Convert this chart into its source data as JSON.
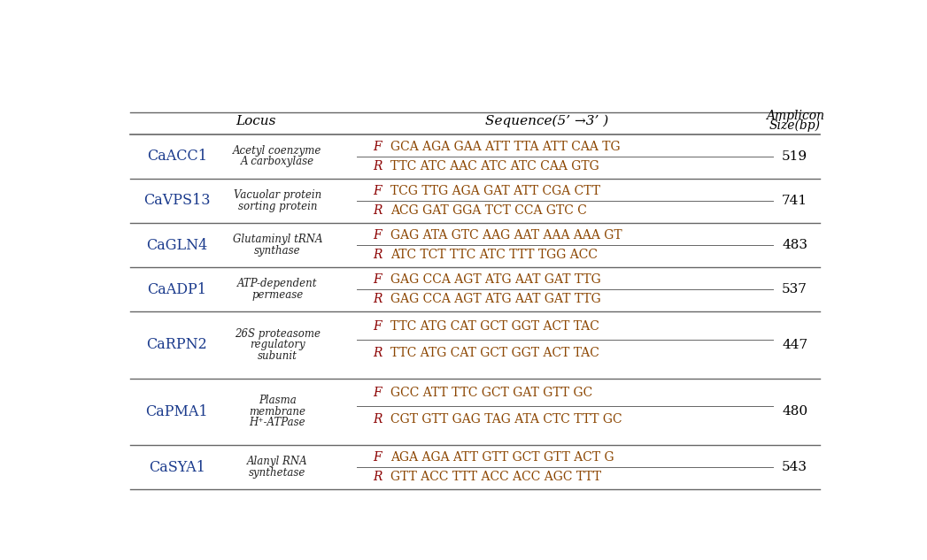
{
  "headers": {
    "locus": "Locus",
    "sequence": "Sequence(5’ →3’ )",
    "amplicon_line1": "Amplicon",
    "amplicon_line2": "Size(bp)"
  },
  "rows": [
    {
      "gene": "CaACC1",
      "description": [
        "Acetyl coenzyme",
        "A carboxylase"
      ],
      "primers": [
        [
          "F",
          "GCA AGA GAA ATT TTA ATT CAA TG"
        ],
        [
          "R",
          "TTC ATC AAC ATC ATC CAA GTG"
        ]
      ],
      "size": "519"
    },
    {
      "gene": "CaVPS13",
      "description": [
        "Vacuolar protein",
        "sorting protein"
      ],
      "primers": [
        [
          "F",
          "TCG TTG AGA GAT ATT CGA CTT"
        ],
        [
          "R",
          "ACG GAT GGA TCT CCA GTC C"
        ]
      ],
      "size": "741"
    },
    {
      "gene": "CaGLN4",
      "description": [
        "Glutaminyl tRNA",
        "synthase"
      ],
      "primers": [
        [
          "F",
          "GAG ATA GTC AAG AAT AAA AAA GT"
        ],
        [
          "R",
          "ATC TCT TTC ATC TTT TGG ACC"
        ]
      ],
      "size": "483"
    },
    {
      "gene": "CaADP1",
      "description": [
        "ATP-dependent",
        "permease"
      ],
      "primers": [
        [
          "F",
          "GAG CCA AGT ATG AAT GAT TTG"
        ],
        [
          "R",
          "GAG CCA AGT ATG AAT GAT TTG"
        ]
      ],
      "size": "537"
    },
    {
      "gene": "CaRPN2",
      "description": [
        "26S proteasome",
        "regulatory",
        "subunit"
      ],
      "primers": [
        [
          "F",
          "TTC ATG CAT GCT GGT ACT TAC"
        ],
        [
          "R",
          "TTC ATG CAT GCT GGT ACT TAC"
        ]
      ],
      "size": "447"
    },
    {
      "gene": "CaPMA1",
      "description": [
        "Plasma",
        "membrane",
        "H⁺-ATPase"
      ],
      "primers": [
        [
          "F",
          "GCC ATT TTC GCT GAT GTT GC"
        ],
        [
          "R",
          "CGT GTT GAG TAG ATA CTC TTT GC"
        ]
      ],
      "size": "480"
    },
    {
      "gene": "CaSYA1",
      "description": [
        "Alanyl RNA",
        "synthetase"
      ],
      "primers": [
        [
          "F",
          "AGA AGA ATT GTT GCT GTT ACT G"
        ],
        [
          "R",
          "GTT ACC TTT ACC ACC AGC TTT"
        ]
      ],
      "size": "543"
    }
  ],
  "bg_color": "#ffffff",
  "text_color": "#000000",
  "gene_color": "#1a3a8c",
  "seq_FR_color": "#8b0000",
  "seq_color": "#8b4500",
  "desc_color": "#222222",
  "header_color": "#000000",
  "line_color": "#666666"
}
